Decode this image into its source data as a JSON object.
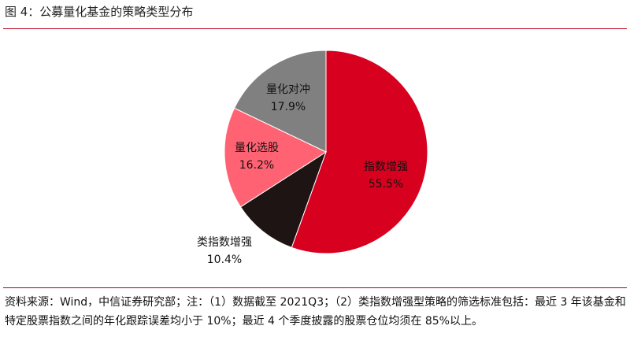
{
  "figure": {
    "title": "图 4：公募量化基金的策略类型分布",
    "source_note": "资料来源：Wind，中信证券研究部；注：（1）数据截至 2021Q3；（2）类指数增强型策略的筛选标准包括：最近 3 年该基金和特定股票指数之间的年化跟踪误差均小于 10%；最近 4 个季度披露的股票仓位均须在 85%以上。"
  },
  "chart_data": {
    "type": "pie",
    "title": "",
    "start_angle_deg": 0,
    "direction": "clockwise",
    "slices": [
      {
        "label": "指数增强",
        "value": 55.5,
        "value_label": "55.5%",
        "color": "#d7001f",
        "text_color": "#111111"
      },
      {
        "label": "类指数增强",
        "value": 10.4,
        "value_label": "10.4%",
        "color": "#1f1414",
        "text_color": "#111111"
      },
      {
        "label": "量化选股",
        "value": 16.2,
        "value_label": "16.2%",
        "color": "#ff6373",
        "text_color": "#111111"
      },
      {
        "label": "量化对冲",
        "value": 17.9,
        "value_label": "17.9%",
        "color": "#808080",
        "text_color": "#111111"
      }
    ]
  }
}
